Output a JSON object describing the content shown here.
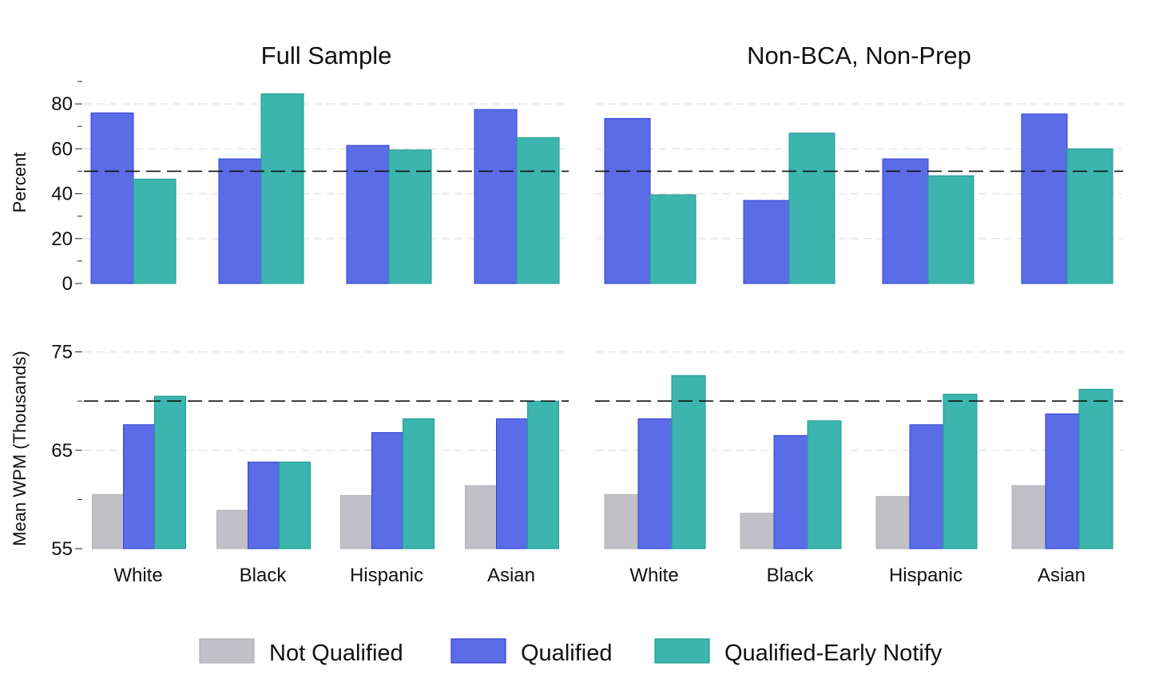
{
  "chart_data": [
    {
      "type": "bar",
      "panel": "top-left",
      "title": "Full Sample",
      "ylabel": "Percent",
      "ylim": [
        0,
        90
      ],
      "yticks": [
        0,
        20,
        40,
        60,
        80
      ],
      "reference_line": 50,
      "categories": [
        "White",
        "Black",
        "Hispanic",
        "Asian"
      ],
      "series": [
        {
          "name": "Qualified",
          "values": [
            76,
            55.5,
            61.5,
            77.5
          ]
        },
        {
          "name": "Qualified-Early Notify",
          "values": [
            46.5,
            84.5,
            59.5,
            65
          ]
        }
      ]
    },
    {
      "type": "bar",
      "panel": "top-right",
      "title": "Non-BCA, Non-Prep",
      "ylim": [
        0,
        90
      ],
      "reference_line": 50,
      "categories": [
        "White",
        "Black",
        "Hispanic",
        "Asian"
      ],
      "series": [
        {
          "name": "Qualified",
          "values": [
            73.5,
            37,
            55.5,
            75.5
          ]
        },
        {
          "name": "Qualified-Early Notify",
          "values": [
            39.5,
            67,
            48,
            60
          ]
        }
      ]
    },
    {
      "type": "bar",
      "panel": "bottom-left",
      "ylabel": "Mean WPM (Thousands)",
      "ylim": [
        55,
        77
      ],
      "yticks": [
        55,
        65,
        75
      ],
      "reference_line": 70,
      "categories": [
        "White",
        "Black",
        "Hispanic",
        "Asian"
      ],
      "series": [
        {
          "name": "Not Qualified",
          "values": [
            60.5,
            58.9,
            60.4,
            61.4
          ]
        },
        {
          "name": "Qualified",
          "values": [
            67.6,
            63.8,
            66.8,
            68.2
          ]
        },
        {
          "name": "Qualified-Early Notify",
          "values": [
            70.5,
            63.8,
            68.2,
            70.0
          ]
        }
      ]
    },
    {
      "type": "bar",
      "panel": "bottom-right",
      "ylim": [
        55,
        77
      ],
      "reference_line": 70,
      "categories": [
        "White",
        "Black",
        "Hispanic",
        "Asian"
      ],
      "series": [
        {
          "name": "Not Qualified",
          "values": [
            60.5,
            58.6,
            60.3,
            61.4
          ]
        },
        {
          "name": "Qualified",
          "values": [
            68.2,
            66.5,
            67.6,
            68.7
          ]
        },
        {
          "name": "Qualified-Early Notify",
          "values": [
            72.6,
            68.0,
            70.7,
            71.2
          ]
        }
      ]
    }
  ],
  "legend": {
    "position": "bottom-center",
    "items": [
      {
        "name": "Not Qualified",
        "color": "#c0c0c6",
        "edge": "#b0b0b6"
      },
      {
        "name": "Qualified",
        "color": "#5a6de6",
        "edge": "#2f3fd4"
      },
      {
        "name": "Qualified-Early Notify",
        "color": "#3bb5ad",
        "edge": "#1f9a92"
      }
    ]
  },
  "grid": "horizontal-dashed-light",
  "reference_line_style": "black dashed"
}
